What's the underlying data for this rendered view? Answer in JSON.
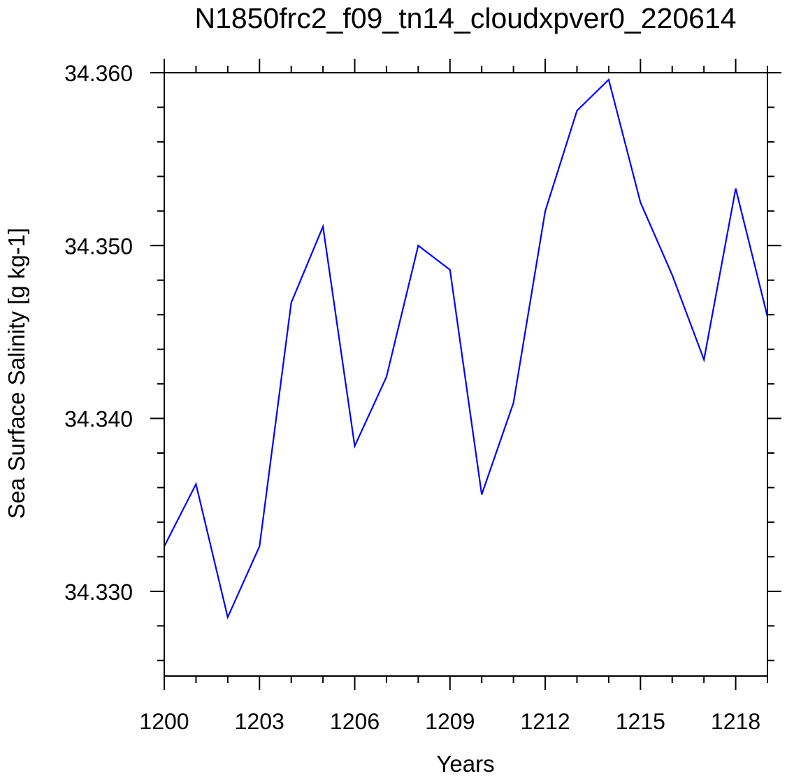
{
  "chart_data": {
    "type": "line",
    "title": "N1850frc2_f09_tn14_cloudxpver0_220614",
    "xlabel": "Years",
    "ylabel": "Sea Surface Salinity [g kg-1]",
    "xlim": [
      1200,
      1219
    ],
    "ylim": [
      34.3251,
      34.36
    ],
    "x_ticks": [
      1200,
      1203,
      1206,
      1209,
      1212,
      1215,
      1218
    ],
    "y_ticks": [
      34.33,
      34.34,
      34.35,
      34.36
    ],
    "y_tick_labels": [
      "34.330",
      "34.340",
      "34.350",
      "34.360"
    ],
    "x_minor_step": 1,
    "y_minor_step": 0.002,
    "series": [
      {
        "name": "Sea Surface Salinity",
        "color": "#0000ff",
        "x": [
          1200,
          1201,
          1202,
          1203,
          1204,
          1205,
          1206,
          1207,
          1208,
          1209,
          1210,
          1211,
          1212,
          1213,
          1214,
          1215,
          1216,
          1217,
          1218,
          1219
        ],
        "values": [
          34.3326,
          34.3362,
          34.3285,
          34.3326,
          34.3467,
          34.3511,
          34.3384,
          34.3424,
          34.35,
          34.3486,
          34.3356,
          34.3409,
          34.352,
          34.3578,
          34.3596,
          34.3525,
          34.3483,
          34.3434,
          34.3533,
          34.3459
        ]
      }
    ]
  }
}
